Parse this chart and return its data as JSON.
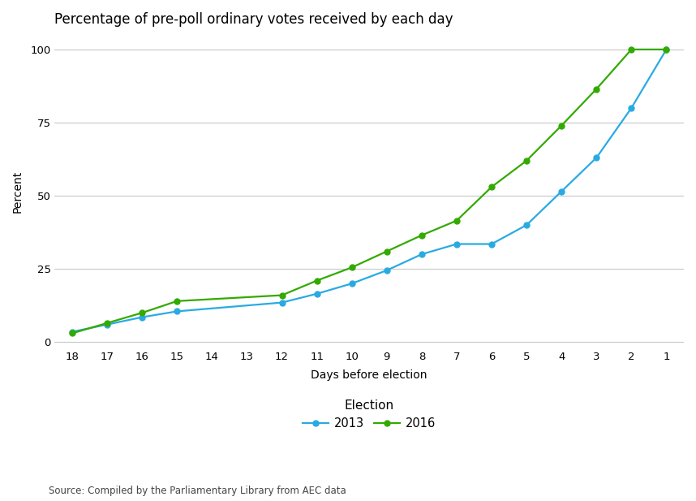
{
  "title": "Percentage of pre-poll ordinary votes received by each day",
  "xlabel": "Days before election",
  "ylabel": "Percent",
  "source": "Source: Compiled by the Parliamentary Library from AEC data",
  "legend_title": "Election",
  "x_days": [
    18,
    17,
    16,
    15,
    14,
    13,
    12,
    11,
    10,
    9,
    8,
    7,
    6,
    5,
    4,
    3,
    2,
    1
  ],
  "data_2013": [
    3.5,
    6.0,
    8.5,
    10.5,
    null,
    null,
    13.5,
    16.5,
    20.0,
    24.5,
    30.0,
    33.5,
    33.5,
    40.0,
    51.5,
    63.0,
    80.0,
    100.0
  ],
  "data_2016": [
    3.0,
    6.5,
    10.0,
    14.0,
    null,
    null,
    16.0,
    21.0,
    25.5,
    31.0,
    36.5,
    41.5,
    53.0,
    62.0,
    74.0,
    86.5,
    100.0,
    100.0
  ],
  "color_2013": "#29ABE2",
  "color_2016": "#33AA00",
  "ylim": [
    -2,
    105
  ],
  "yticks": [
    0,
    25,
    50,
    75,
    100
  ],
  "background_color": "#FFFFFF",
  "grid_color": "#C8C8C8",
  "title_fontsize": 12,
  "axis_label_fontsize": 10,
  "tick_fontsize": 9.5,
  "source_fontsize": 8.5
}
